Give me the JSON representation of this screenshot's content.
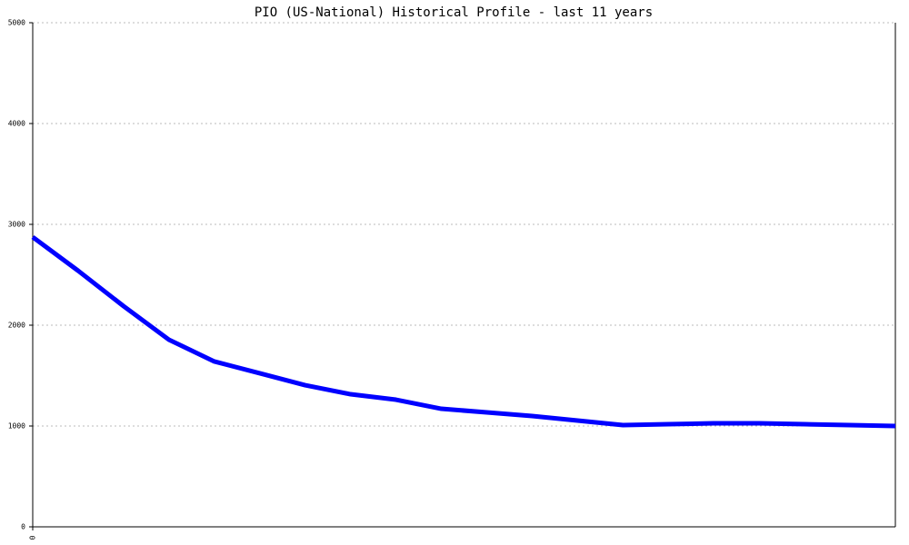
{
  "chart_data": {
    "type": "line",
    "title": "PIO (US-National) Historical Profile - last 11 years",
    "x": [
      0,
      1,
      2,
      3,
      4,
      5,
      6,
      7,
      8,
      9,
      10,
      11,
      12,
      13,
      14,
      15,
      16,
      17,
      18,
      19
    ],
    "xlim": [
      0,
      19
    ],
    "xticks": [
      0
    ],
    "series": [
      {
        "name": "PIO",
        "color": "#0000ff",
        "values": [
          2874,
          2540,
          2189,
          1856,
          1640,
          1523,
          1405,
          1315,
          1261,
          1171,
          1135,
          1099,
          1054,
          1009,
          1018,
          1027,
          1027,
          1018,
          1009,
          1000
        ]
      }
    ],
    "ylim": [
      0,
      5000
    ],
    "yticks": [
      0,
      1000,
      2000,
      3000,
      4000,
      5000
    ],
    "grid": true
  }
}
